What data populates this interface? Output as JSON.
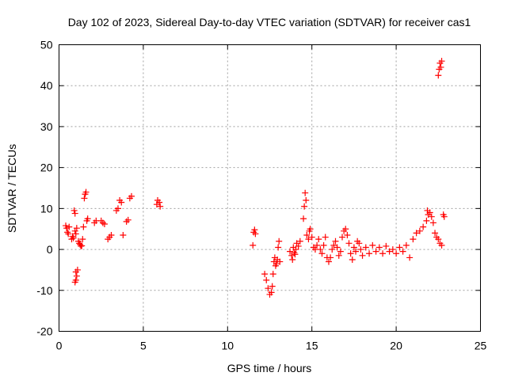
{
  "chart_data": {
    "type": "scatter",
    "title": "Day 102 of 2023, Sidereal Day-to-day VTEC variation (SDTVAR) for receiver cas1",
    "xlabel": "GPS time / hours",
    "ylabel": "SDTVAR / TECUs",
    "xlim": [
      0,
      25
    ],
    "ylim": [
      -20,
      50
    ],
    "xticks": [
      "0",
      "5",
      "10",
      "15",
      "20",
      "25"
    ],
    "yticks": [
      "-20",
      "-10",
      "0",
      "10",
      "20",
      "30",
      "40",
      "50"
    ],
    "grid": true,
    "marker": "+",
    "color": "#ff0000",
    "series": [
      {
        "name": "SDTVAR",
        "points": [
          [
            0.4,
            5.8
          ],
          [
            0.45,
            5.2
          ],
          [
            0.5,
            4.2
          ],
          [
            0.55,
            3.8
          ],
          [
            0.6,
            5.5
          ],
          [
            0.75,
            2.5
          ],
          [
            0.8,
            3.2
          ],
          [
            0.85,
            2.8
          ],
          [
            0.9,
            9.5
          ],
          [
            0.95,
            8.8
          ],
          [
            0.95,
            4.5
          ],
          [
            1.0,
            3.8
          ],
          [
            1.05,
            5.2
          ],
          [
            1.0,
            -5.5
          ],
          [
            1.05,
            -6.5
          ],
          [
            1.0,
            -7.5
          ],
          [
            0.95,
            -8.0
          ],
          [
            1.1,
            -5.0
          ],
          [
            1.15,
            2.0
          ],
          [
            1.2,
            1.5
          ],
          [
            1.25,
            1.2
          ],
          [
            1.3,
            0.8
          ],
          [
            1.35,
            0.9
          ],
          [
            1.4,
            2.5
          ],
          [
            1.45,
            5.5
          ],
          [
            1.5,
            12.5
          ],
          [
            1.55,
            13.5
          ],
          [
            1.6,
            14.0
          ],
          [
            1.65,
            7.0
          ],
          [
            1.7,
            7.5
          ],
          [
            2.1,
            6.5
          ],
          [
            2.2,
            7.0
          ],
          [
            2.5,
            7.0
          ],
          [
            2.6,
            6.5
          ],
          [
            2.7,
            6.2
          ],
          [
            2.9,
            2.5
          ],
          [
            3.0,
            3.0
          ],
          [
            3.1,
            3.5
          ],
          [
            3.4,
            9.5
          ],
          [
            3.5,
            10.0
          ],
          [
            3.6,
            12.0
          ],
          [
            3.7,
            11.5
          ],
          [
            3.8,
            3.5
          ],
          [
            4.0,
            6.8
          ],
          [
            4.1,
            7.2
          ],
          [
            4.2,
            12.5
          ],
          [
            4.3,
            13.0
          ],
          [
            5.8,
            11.0
          ],
          [
            5.85,
            12.0
          ],
          [
            5.95,
            11.5
          ],
          [
            6.0,
            10.5
          ],
          [
            11.5,
            1.0
          ],
          [
            11.55,
            4.2
          ],
          [
            11.6,
            4.8
          ],
          [
            11.65,
            3.8
          ],
          [
            12.2,
            -6.0
          ],
          [
            12.3,
            -7.5
          ],
          [
            12.4,
            -9.5
          ],
          [
            12.5,
            -11.0
          ],
          [
            12.6,
            -10.5
          ],
          [
            12.65,
            -9.0
          ],
          [
            12.7,
            -6.0
          ],
          [
            12.75,
            -3.0
          ],
          [
            12.8,
            -2.0
          ],
          [
            12.85,
            -4.0
          ],
          [
            12.9,
            -3.5
          ],
          [
            12.95,
            -2.5
          ],
          [
            13.0,
            0.5
          ],
          [
            13.05,
            2.0
          ],
          [
            13.1,
            -3.0
          ],
          [
            13.7,
            -0.5
          ],
          [
            13.8,
            -1.5
          ],
          [
            13.85,
            -2.5
          ],
          [
            13.9,
            0.5
          ],
          [
            13.95,
            -0.8
          ],
          [
            14.0,
            -1.2
          ],
          [
            14.05,
            0.0
          ],
          [
            14.1,
            1.5
          ],
          [
            14.2,
            0.8
          ],
          [
            14.3,
            2.0
          ],
          [
            14.5,
            7.5
          ],
          [
            14.55,
            10.5
          ],
          [
            14.6,
            13.8
          ],
          [
            14.65,
            12.0
          ],
          [
            14.7,
            3.5
          ],
          [
            14.8,
            2.5
          ],
          [
            14.85,
            4.5
          ],
          [
            14.9,
            5.0
          ],
          [
            15.0,
            3.0
          ],
          [
            15.1,
            0.5
          ],
          [
            15.2,
            0.0
          ],
          [
            15.3,
            1.0
          ],
          [
            15.4,
            2.5
          ],
          [
            15.5,
            0.0
          ],
          [
            15.6,
            -1.0
          ],
          [
            15.7,
            1.0
          ],
          [
            15.8,
            3.0
          ],
          [
            15.9,
            -2.0
          ],
          [
            16.0,
            -3.0
          ],
          [
            16.1,
            -2.0
          ],
          [
            16.2,
            0.0
          ],
          [
            16.3,
            1.0
          ],
          [
            16.4,
            2.0
          ],
          [
            16.5,
            0.5
          ],
          [
            16.6,
            -1.5
          ],
          [
            16.7,
            -0.5
          ],
          [
            16.8,
            3.0
          ],
          [
            16.9,
            4.5
          ],
          [
            17.0,
            5.0
          ],
          [
            17.1,
            3.5
          ],
          [
            17.2,
            1.5
          ],
          [
            17.3,
            -1.0
          ],
          [
            17.4,
            -2.5
          ],
          [
            17.5,
            0.5
          ],
          [
            17.6,
            -0.5
          ],
          [
            17.7,
            2.0
          ],
          [
            17.8,
            1.5
          ],
          [
            17.9,
            0.0
          ],
          [
            18.0,
            -1.5
          ],
          [
            18.2,
            0.5
          ],
          [
            18.4,
            -1.0
          ],
          [
            18.6,
            1.0
          ],
          [
            18.8,
            -0.5
          ],
          [
            19.0,
            0.5
          ],
          [
            19.2,
            -1.0
          ],
          [
            19.4,
            0.8
          ],
          [
            19.6,
            -0.5
          ],
          [
            19.8,
            0.0
          ],
          [
            20.0,
            -1.0
          ],
          [
            20.2,
            0.5
          ],
          [
            20.4,
            -0.5
          ],
          [
            20.6,
            1.0
          ],
          [
            20.8,
            -2.0
          ],
          [
            21.0,
            2.5
          ],
          [
            21.2,
            4.0
          ],
          [
            21.4,
            4.5
          ],
          [
            21.6,
            5.5
          ],
          [
            21.8,
            7.0
          ],
          [
            21.85,
            9.5
          ],
          [
            21.9,
            8.5
          ],
          [
            22.0,
            9.0
          ],
          [
            22.1,
            8.0
          ],
          [
            22.2,
            6.5
          ],
          [
            22.3,
            4.0
          ],
          [
            22.4,
            3.0
          ],
          [
            22.5,
            2.5
          ],
          [
            22.6,
            1.5
          ],
          [
            22.7,
            1.0
          ],
          [
            22.8,
            8.5
          ],
          [
            22.85,
            8.0
          ],
          [
            22.5,
            42.5
          ],
          [
            22.55,
            44.0
          ],
          [
            22.6,
            45.5
          ],
          [
            22.65,
            44.5
          ],
          [
            22.7,
            46.0
          ]
        ]
      }
    ]
  }
}
